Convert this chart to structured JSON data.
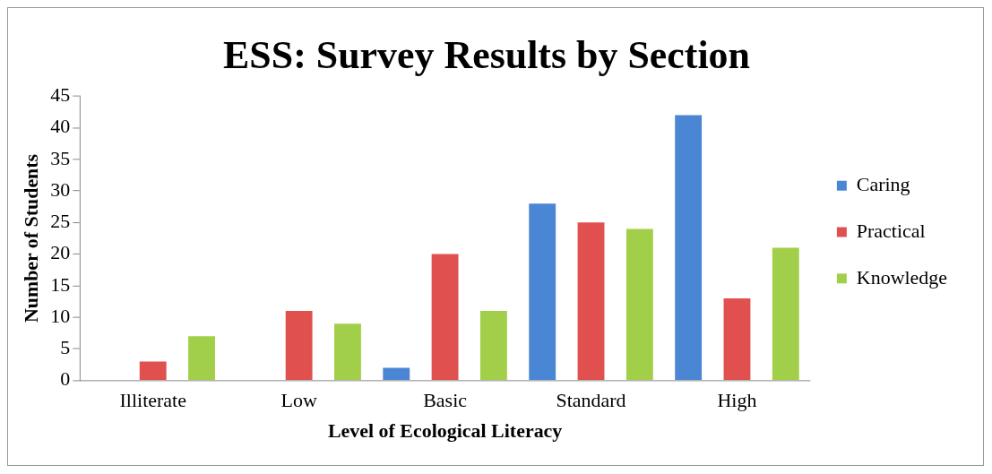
{
  "chart_data": {
    "type": "bar",
    "title": "ESS: Survey Results by Section",
    "xlabel": "Level of Ecological Literacy",
    "ylabel": "Number of Students",
    "categories": [
      "Illiterate",
      "Low",
      "Basic",
      "Standard",
      "High"
    ],
    "series": [
      {
        "name": "Caring",
        "color": "#4a86d4",
        "values": [
          0,
          0,
          2,
          28,
          42
        ]
      },
      {
        "name": "Practical",
        "color": "#e0504f",
        "values": [
          3,
          11,
          20,
          25,
          13
        ]
      },
      {
        "name": "Knowledge",
        "color": "#a2cf4a",
        "values": [
          7,
          9,
          11,
          24,
          21
        ]
      }
    ],
    "ylim": [
      0,
      45
    ],
    "yticks": [
      0,
      5,
      10,
      15,
      20,
      25,
      30,
      35,
      40,
      45
    ],
    "grid": false,
    "legend": "right"
  }
}
